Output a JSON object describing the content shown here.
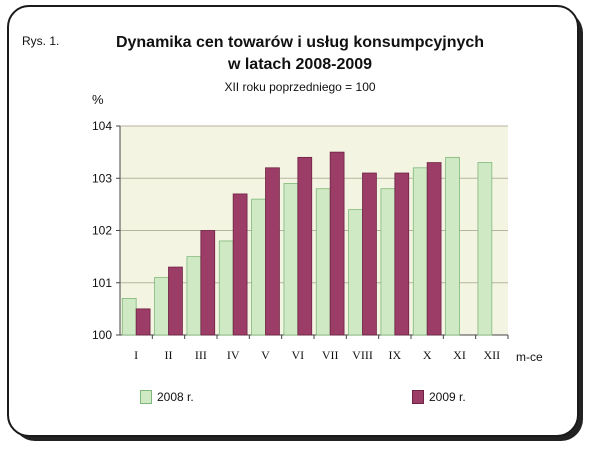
{
  "figure_label": "Rys. 1.",
  "chart_data": {
    "type": "bar",
    "title_line1": "Dynamika cen towarów i usług konsumpcyjnych",
    "title_line2": "w latach 2008-2009",
    "subtitle": "XII roku poprzedniego = 100",
    "ylabel": "%",
    "xlabel": "m-ce",
    "categories": [
      "I",
      "II",
      "III",
      "IV",
      "V",
      "VI",
      "VII",
      "VIII",
      "IX",
      "X",
      "XI",
      "XII"
    ],
    "ylim": [
      100,
      104
    ],
    "yticks": [
      100,
      101,
      102,
      103,
      104
    ],
    "grid": true,
    "legend_position": "bottom",
    "series": [
      {
        "name": "2008 r.",
        "color": "#cfe9c4",
        "edge": "#7fb87a",
        "values": [
          100.7,
          101.1,
          101.5,
          101.8,
          102.6,
          102.9,
          102.8,
          102.4,
          102.8,
          103.2,
          103.4,
          103.3
        ]
      },
      {
        "name": "2009 r.",
        "color": "#9b3d66",
        "edge": "#6e2244",
        "values": [
          100.5,
          101.3,
          102.0,
          102.7,
          103.2,
          103.4,
          103.5,
          103.1,
          103.1,
          103.3,
          null,
          null
        ]
      }
    ]
  }
}
